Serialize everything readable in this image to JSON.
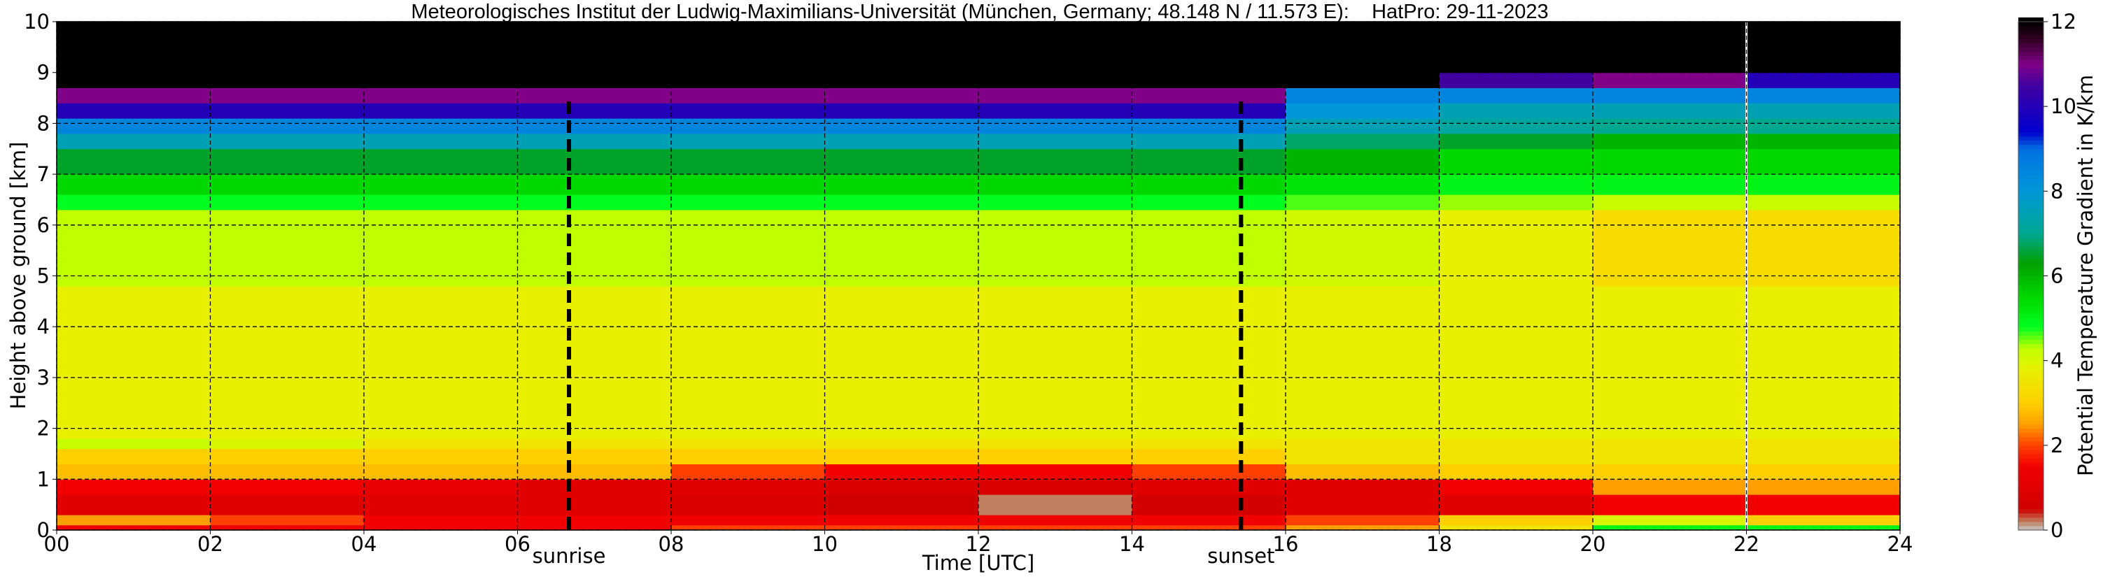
{
  "chart_data": {
    "type": "heatmap",
    "title": "Meteorologisches Institut der Ludwig-Maximilians-Universität (München, Germany; 48.148 N / 11.573 E):    HatPro: 29-11-2023",
    "xlabel": "Time [UTC]",
    "ylabel": "Height above ground [km]",
    "colorbar_label": "Potential Temperature Gradient in K/km",
    "xlim": [
      0,
      24
    ],
    "ylim": [
      0,
      10
    ],
    "clim": [
      0,
      12
    ],
    "x_ticks": [
      "00",
      "02",
      "04",
      "06",
      "08",
      "10",
      "12",
      "14",
      "16",
      "18",
      "20",
      "22",
      "24"
    ],
    "y_ticks": [
      "0",
      "1",
      "2",
      "3",
      "4",
      "5",
      "6",
      "7",
      "8",
      "9",
      "10"
    ],
    "colorbar_ticks": [
      "0",
      "2",
      "4",
      "6",
      "8",
      "10",
      "12"
    ],
    "grid": true,
    "time_edges": [
      0,
      2,
      4,
      6,
      8,
      10,
      12,
      14,
      16,
      18,
      20,
      22,
      24
    ],
    "height_edges": [
      0,
      0.1,
      0.3,
      0.7,
      1.0,
      1.3,
      1.6,
      1.8,
      4.8,
      6.3,
      6.6,
      7.0,
      7.5,
      7.8,
      8.1,
      8.4,
      8.7,
      9.0,
      10
    ],
    "values": [
      [
        1.5,
        1.5,
        1.5,
        1.5,
        2,
        2,
        2,
        2,
        2.5,
        3.5,
        5,
        5
      ],
      [
        2.5,
        2,
        1.5,
        1.5,
        1.5,
        1.5,
        1.5,
        1.5,
        2,
        3,
        4,
        3
      ],
      [
        1,
        1,
        1,
        1,
        0.8,
        0.5,
        0.2,
        0.6,
        1,
        1,
        1.5,
        1.5
      ],
      [
        1.5,
        1.5,
        1.2,
        1,
        1,
        0.8,
        0.8,
        1,
        1,
        1.5,
        2.5,
        2.5
      ],
      [
        2.8,
        2.8,
        2.8,
        2.8,
        2,
        1.5,
        1.5,
        2,
        2.8,
        3,
        3,
        3
      ],
      [
        3,
        3,
        3,
        3,
        3,
        3,
        3,
        3,
        3.5,
        3.5,
        3.5,
        3.5
      ],
      [
        4.2,
        4,
        3.5,
        3.5,
        3.5,
        3.5,
        3.5,
        3.5,
        3.5,
        3.5,
        3.5,
        3.5
      ],
      [
        3.8,
        3.8,
        3.8,
        3.8,
        3.8,
        3.8,
        3.8,
        3.8,
        3.8,
        3.8,
        3.8,
        3.8
      ],
      [
        4.3,
        4.3,
        4.3,
        4.3,
        4.3,
        4.3,
        4.3,
        4.3,
        4.1,
        3.8,
        3.3,
        3.3
      ],
      [
        4.8,
        4.8,
        4.8,
        4.8,
        4.8,
        4.8,
        4.8,
        4.8,
        4.6,
        4.4,
        4.2,
        4.2
      ],
      [
        5.5,
        5.5,
        5.5,
        5.5,
        5.5,
        5.5,
        5.5,
        5.5,
        5.3,
        5,
        5,
        5
      ],
      [
        6.5,
        6.5,
        6.5,
        6.5,
        6.5,
        6.5,
        6.5,
        6.5,
        6,
        5.5,
        5.5,
        5.5
      ],
      [
        7.5,
        7.5,
        7.5,
        7.5,
        7.5,
        7.5,
        7.5,
        7.5,
        6.8,
        6.5,
        6,
        6
      ],
      [
        8.5,
        8.5,
        8.5,
        8.5,
        8.5,
        8.5,
        8.5,
        8.5,
        7.5,
        7.2,
        7,
        7
      ],
      [
        10,
        10,
        10,
        10,
        10,
        10,
        10,
        10,
        8,
        7.5,
        7.5,
        7.5
      ],
      [
        11,
        11,
        11,
        11,
        11,
        11,
        11,
        11,
        8.5,
        8.5,
        8.5,
        8.5
      ],
      [
        12,
        12,
        12,
        12,
        12,
        12,
        12,
        12,
        12,
        10.5,
        11,
        10
      ],
      [
        12,
        12,
        12,
        12,
        12,
        12,
        12,
        12,
        12,
        12,
        12,
        12
      ]
    ],
    "colorscale": [
      [
        0,
        "#c8c8c8"
      ],
      [
        0.2,
        "#c08060"
      ],
      [
        0.5,
        "#d00000"
      ],
      [
        1.5,
        "#f00000"
      ],
      [
        2,
        "#ff4000"
      ],
      [
        2.5,
        "#ffa000"
      ],
      [
        3,
        "#ffd000"
      ],
      [
        3.8,
        "#e8f000"
      ],
      [
        4.3,
        "#c0ff00"
      ],
      [
        4.8,
        "#00ff20"
      ],
      [
        5.5,
        "#00d800"
      ],
      [
        6.3,
        "#00a000"
      ],
      [
        7,
        "#00a890"
      ],
      [
        8,
        "#0098d8"
      ],
      [
        9,
        "#0070e0"
      ],
      [
        9.4,
        "#0000d0"
      ],
      [
        10.5,
        "#4000a0"
      ],
      [
        11,
        "#800088"
      ],
      [
        11.6,
        "#300020"
      ],
      [
        12,
        "#000000"
      ]
    ],
    "annotations": [
      {
        "label": "sunrise",
        "time": 6.67
      },
      {
        "label": "sunset",
        "time": 15.42
      }
    ],
    "data_gap_time": 22.0
  }
}
